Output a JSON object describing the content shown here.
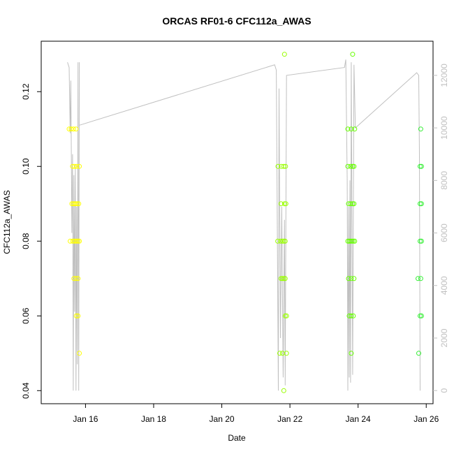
{
  "chart_data": {
    "type": "scatter",
    "title": "ORCAS RF01-6 CFC112a_AWAS",
    "xlabel": "Date",
    "ylabel": "CFC112a_AWAS",
    "xlim_days": [
      14.7,
      26.2
    ],
    "ylim": [
      0.0365,
      0.1335
    ],
    "y2lim": [
      -500,
      13300
    ],
    "x_ticks": [
      {
        "day": 16,
        "label": "Jan 16"
      },
      {
        "day": 18,
        "label": "Jan 18"
      },
      {
        "day": 20,
        "label": "Jan 20"
      },
      {
        "day": 22,
        "label": "Jan 22"
      },
      {
        "day": 24,
        "label": "Jan 24"
      },
      {
        "day": 26,
        "label": "Jan 26"
      }
    ],
    "y_ticks": [
      0.04,
      0.06,
      0.08,
      0.1,
      0.12
    ],
    "y_tick_labels": [
      "0.04",
      "0.06",
      "0.08",
      "0.10",
      "0.12"
    ],
    "y2_ticks": [
      0,
      2000,
      4000,
      6000,
      8000,
      10000,
      12000
    ],
    "y2_tick_labels": [
      "0",
      "2000",
      "4000",
      "6000",
      "8000",
      "10000",
      "12000"
    ],
    "colors": {
      "altitude_line": "#c0c0c0",
      "flight1": "#ffff00",
      "flight2": "#99ff00",
      "flight3": "#66ff00",
      "flight4": "#33ee33",
      "flight5": "#22ee55"
    },
    "points": [
      {
        "d": 15.52,
        "y": 0.11,
        "c": "flight1"
      },
      {
        "d": 15.58,
        "y": 0.11,
        "c": "flight1"
      },
      {
        "d": 15.65,
        "y": 0.11,
        "c": "flight1"
      },
      {
        "d": 15.72,
        "y": 0.11,
        "c": "flight1"
      },
      {
        "d": 15.62,
        "y": 0.1,
        "c": "flight1"
      },
      {
        "d": 15.68,
        "y": 0.1,
        "c": "flight1"
      },
      {
        "d": 15.74,
        "y": 0.1,
        "c": "flight1"
      },
      {
        "d": 15.82,
        "y": 0.1,
        "c": "flight1"
      },
      {
        "d": 15.6,
        "y": 0.09,
        "c": "flight1"
      },
      {
        "d": 15.64,
        "y": 0.09,
        "c": "flight1"
      },
      {
        "d": 15.68,
        "y": 0.09,
        "c": "flight1"
      },
      {
        "d": 15.72,
        "y": 0.09,
        "c": "flight1"
      },
      {
        "d": 15.76,
        "y": 0.09,
        "c": "flight1"
      },
      {
        "d": 15.8,
        "y": 0.09,
        "c": "flight1"
      },
      {
        "d": 15.55,
        "y": 0.08,
        "c": "flight1"
      },
      {
        "d": 15.62,
        "y": 0.08,
        "c": "flight1"
      },
      {
        "d": 15.66,
        "y": 0.08,
        "c": "flight1"
      },
      {
        "d": 15.7,
        "y": 0.08,
        "c": "flight1"
      },
      {
        "d": 15.74,
        "y": 0.08,
        "c": "flight1"
      },
      {
        "d": 15.78,
        "y": 0.08,
        "c": "flight1"
      },
      {
        "d": 15.82,
        "y": 0.08,
        "c": "flight1"
      },
      {
        "d": 15.66,
        "y": 0.07,
        "c": "flight1"
      },
      {
        "d": 15.72,
        "y": 0.07,
        "c": "flight1"
      },
      {
        "d": 15.78,
        "y": 0.07,
        "c": "flight1"
      },
      {
        "d": 15.73,
        "y": 0.06,
        "c": "flight1"
      },
      {
        "d": 15.78,
        "y": 0.06,
        "c": "flight1"
      },
      {
        "d": 15.82,
        "y": 0.05,
        "c": "flight1"
      },
      {
        "d": 21.84,
        "y": 0.13,
        "c": "flight2"
      },
      {
        "d": 21.65,
        "y": 0.1,
        "c": "flight2"
      },
      {
        "d": 21.75,
        "y": 0.1,
        "c": "flight2"
      },
      {
        "d": 21.82,
        "y": 0.1,
        "c": "flight2"
      },
      {
        "d": 21.87,
        "y": 0.1,
        "c": "flight2"
      },
      {
        "d": 21.74,
        "y": 0.09,
        "c": "flight2"
      },
      {
        "d": 21.84,
        "y": 0.09,
        "c": "flight2"
      },
      {
        "d": 21.88,
        "y": 0.09,
        "c": "flight2"
      },
      {
        "d": 21.64,
        "y": 0.08,
        "c": "flight2"
      },
      {
        "d": 21.72,
        "y": 0.08,
        "c": "flight2"
      },
      {
        "d": 21.78,
        "y": 0.08,
        "c": "flight2"
      },
      {
        "d": 21.82,
        "y": 0.08,
        "c": "flight2"
      },
      {
        "d": 21.86,
        "y": 0.08,
        "c": "flight2"
      },
      {
        "d": 21.74,
        "y": 0.07,
        "c": "flight2"
      },
      {
        "d": 21.78,
        "y": 0.07,
        "c": "flight2"
      },
      {
        "d": 21.82,
        "y": 0.07,
        "c": "flight2"
      },
      {
        "d": 21.86,
        "y": 0.07,
        "c": "flight2"
      },
      {
        "d": 21.86,
        "y": 0.06,
        "c": "flight2"
      },
      {
        "d": 21.9,
        "y": 0.06,
        "c": "flight2"
      },
      {
        "d": 21.7,
        "y": 0.05,
        "c": "flight2"
      },
      {
        "d": 21.78,
        "y": 0.05,
        "c": "flight2"
      },
      {
        "d": 21.9,
        "y": 0.05,
        "c": "flight2"
      },
      {
        "d": 21.82,
        "y": 0.04,
        "c": "flight2"
      },
      {
        "d": 23.84,
        "y": 0.13,
        "c": "flight3"
      },
      {
        "d": 23.7,
        "y": 0.11,
        "c": "flight3"
      },
      {
        "d": 23.8,
        "y": 0.11,
        "c": "flight3"
      },
      {
        "d": 23.9,
        "y": 0.11,
        "c": "flight3"
      },
      {
        "d": 23.7,
        "y": 0.1,
        "c": "flight3"
      },
      {
        "d": 23.78,
        "y": 0.1,
        "c": "flight3"
      },
      {
        "d": 23.84,
        "y": 0.1,
        "c": "flight3"
      },
      {
        "d": 23.88,
        "y": 0.1,
        "c": "flight3"
      },
      {
        "d": 23.72,
        "y": 0.09,
        "c": "flight3"
      },
      {
        "d": 23.78,
        "y": 0.09,
        "c": "flight3"
      },
      {
        "d": 23.84,
        "y": 0.09,
        "c": "flight3"
      },
      {
        "d": 23.88,
        "y": 0.09,
        "c": "flight3"
      },
      {
        "d": 23.7,
        "y": 0.08,
        "c": "flight3"
      },
      {
        "d": 23.74,
        "y": 0.08,
        "c": "flight3"
      },
      {
        "d": 23.78,
        "y": 0.08,
        "c": "flight3"
      },
      {
        "d": 23.82,
        "y": 0.08,
        "c": "flight3"
      },
      {
        "d": 23.86,
        "y": 0.08,
        "c": "flight3"
      },
      {
        "d": 23.9,
        "y": 0.08,
        "c": "flight3"
      },
      {
        "d": 23.72,
        "y": 0.07,
        "c": "flight3"
      },
      {
        "d": 23.8,
        "y": 0.07,
        "c": "flight3"
      },
      {
        "d": 23.88,
        "y": 0.07,
        "c": "flight3"
      },
      {
        "d": 23.74,
        "y": 0.06,
        "c": "flight3"
      },
      {
        "d": 23.8,
        "y": 0.06,
        "c": "flight3"
      },
      {
        "d": 23.86,
        "y": 0.06,
        "c": "flight3"
      },
      {
        "d": 23.8,
        "y": 0.05,
        "c": "flight3"
      },
      {
        "d": 25.84,
        "y": 0.11,
        "c": "flight4"
      },
      {
        "d": 25.82,
        "y": 0.1,
        "c": "flight4"
      },
      {
        "d": 25.86,
        "y": 0.1,
        "c": "flight4"
      },
      {
        "d": 25.82,
        "y": 0.09,
        "c": "flight4"
      },
      {
        "d": 25.86,
        "y": 0.09,
        "c": "flight4"
      },
      {
        "d": 25.82,
        "y": 0.08,
        "c": "flight4"
      },
      {
        "d": 25.86,
        "y": 0.08,
        "c": "flight4"
      },
      {
        "d": 25.76,
        "y": 0.07,
        "c": "flight4"
      },
      {
        "d": 25.84,
        "y": 0.07,
        "c": "flight4"
      },
      {
        "d": 25.82,
        "y": 0.06,
        "c": "flight4"
      },
      {
        "d": 25.86,
        "y": 0.06,
        "c": "flight4"
      },
      {
        "d": 25.78,
        "y": 0.05,
        "c": "flight4"
      }
    ],
    "altitude_segments": [
      [
        [
          15.47,
          12500
        ],
        [
          15.52,
          12300
        ],
        [
          15.55,
          9800
        ],
        [
          15.57,
          11800
        ],
        [
          15.6,
          6000
        ],
        [
          15.62,
          9000
        ],
        [
          15.64,
          0
        ],
        [
          15.66,
          8200
        ],
        [
          15.68,
          3000
        ],
        [
          15.7,
          8600
        ],
        [
          15.72,
          0
        ],
        [
          15.74,
          7000
        ],
        [
          15.76,
          1000
        ],
        [
          15.78,
          12500
        ],
        [
          15.8,
          0
        ],
        [
          15.82,
          12500
        ]
      ],
      [
        [
          15.82,
          10100
        ],
        [
          21.55,
          12400
        ],
        [
          21.6,
          12200
        ],
        [
          21.66,
          0
        ],
        [
          21.68,
          11500
        ],
        [
          21.72,
          2000
        ],
        [
          21.76,
          7000
        ],
        [
          21.8,
          500
        ],
        [
          21.84,
          6500
        ],
        [
          21.86,
          200
        ],
        [
          21.9,
          12000
        ],
        [
          23.6,
          12300
        ],
        [
          23.64,
          12600
        ],
        [
          23.68,
          8000
        ],
        [
          23.7,
          0
        ],
        [
          23.72,
          7000
        ],
        [
          23.74,
          500
        ],
        [
          23.76,
          8000
        ],
        [
          23.78,
          300
        ],
        [
          23.8,
          12500
        ],
        [
          23.84,
          600
        ],
        [
          23.88,
          12400
        ],
        [
          23.92,
          10000
        ],
        [
          25.72,
          12100
        ],
        [
          25.78,
          12000
        ],
        [
          25.8,
          9000
        ],
        [
          25.82,
          0
        ]
      ]
    ]
  }
}
